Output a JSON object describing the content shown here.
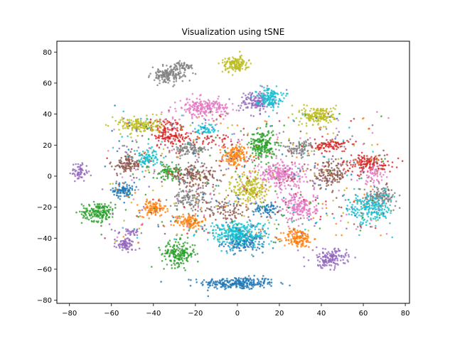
{
  "chart_data": {
    "type": "scatter",
    "title": "Visualization using tSNE",
    "xlabel": "",
    "ylabel": "",
    "xlim": [
      -86,
      82
    ],
    "ylim": [
      -82,
      87
    ],
    "xticks": [
      -80,
      -60,
      -40,
      -20,
      0,
      20,
      40,
      60,
      80
    ],
    "yticks": [
      -80,
      -60,
      -40,
      -20,
      0,
      20,
      40,
      60,
      80
    ],
    "xtick_labels": [
      "−80",
      "−60",
      "−40",
      "−20",
      "0",
      "20",
      "40",
      "60",
      "80"
    ],
    "ytick_labels": [
      "−80",
      "−60",
      "−40",
      "−20",
      "0",
      "20",
      "40",
      "60",
      "80"
    ],
    "grid": false,
    "legend": "none",
    "clusters": [
      {
        "color": "#1f77b4",
        "center": [
          0,
          -69
        ],
        "spread": [
          9,
          2
        ],
        "points": 260
      },
      {
        "color": "#1f77b4",
        "center": [
          -54,
          -9
        ],
        "spread": [
          2.5,
          2.5
        ],
        "points": 90
      },
      {
        "color": "#1f77b4",
        "center": [
          3,
          -43
        ],
        "spread": [
          5,
          3
        ],
        "points": 160
      },
      {
        "color": "#1f77b4",
        "center": [
          14,
          -21
        ],
        "spread": [
          3,
          2
        ],
        "points": 70
      },
      {
        "color": "#ff7f0e",
        "center": [
          -1,
          13
        ],
        "spread": [
          3,
          3.5
        ],
        "points": 150
      },
      {
        "color": "#ff7f0e",
        "center": [
          -40,
          -21
        ],
        "spread": [
          3,
          2.5
        ],
        "points": 100
      },
      {
        "color": "#ff7f0e",
        "center": [
          -23,
          -29
        ],
        "spread": [
          3.5,
          2.5
        ],
        "points": 110
      },
      {
        "color": "#ff7f0e",
        "center": [
          29,
          -40
        ],
        "spread": [
          3.5,
          3
        ],
        "points": 140
      },
      {
        "color": "#2ca02c",
        "center": [
          -66,
          -23
        ],
        "spread": [
          4,
          3
        ],
        "points": 180
      },
      {
        "color": "#2ca02c",
        "center": [
          -28,
          -50
        ],
        "spread": [
          4,
          4
        ],
        "points": 190
      },
      {
        "color": "#2ca02c",
        "center": [
          12,
          20
        ],
        "spread": [
          3,
          5
        ],
        "points": 200
      },
      {
        "color": "#2ca02c",
        "center": [
          -33,
          3
        ],
        "spread": [
          3,
          2.5
        ],
        "points": 80
      },
      {
        "color": "#d62728",
        "center": [
          -33,
          28
        ],
        "spread": [
          4,
          5
        ],
        "points": 150
      },
      {
        "color": "#d62728",
        "center": [
          45,
          20
        ],
        "spread": [
          4,
          2
        ],
        "points": 90
      },
      {
        "color": "#d62728",
        "center": [
          62,
          8
        ],
        "spread": [
          6,
          3
        ],
        "points": 150
      },
      {
        "color": "#d62728",
        "center": [
          -15,
          24
        ],
        "spread": [
          8,
          2
        ],
        "points": 60
      },
      {
        "color": "#9467bd",
        "center": [
          -75,
          3
        ],
        "spread": [
          2,
          3
        ],
        "points": 60
      },
      {
        "color": "#9467bd",
        "center": [
          9,
          48
        ],
        "spread": [
          4,
          3.5
        ],
        "points": 140
      },
      {
        "color": "#9467bd",
        "center": [
          -53,
          -44
        ],
        "spread": [
          2.5,
          2
        ],
        "points": 80
      },
      {
        "color": "#9467bd",
        "center": [
          44,
          -53
        ],
        "spread": [
          4,
          3
        ],
        "points": 150
      },
      {
        "color": "#9467bd",
        "center": [
          -50,
          -36
        ],
        "spread": [
          3,
          1
        ],
        "points": 30
      },
      {
        "color": "#8c564b",
        "center": [
          -52,
          8
        ],
        "spread": [
          4,
          3
        ],
        "points": 110
      },
      {
        "color": "#8c564b",
        "center": [
          -21,
          0
        ],
        "spread": [
          6,
          3.5
        ],
        "points": 170
      },
      {
        "color": "#8c564b",
        "center": [
          44,
          1
        ],
        "spread": [
          4,
          4
        ],
        "points": 140
      },
      {
        "color": "#8c564b",
        "center": [
          -5,
          -22
        ],
        "spread": [
          6,
          3
        ],
        "points": 80
      },
      {
        "color": "#e377c2",
        "center": [
          -16,
          44
        ],
        "spread": [
          6,
          3
        ],
        "points": 210
      },
      {
        "color": "#e377c2",
        "center": [
          21,
          1
        ],
        "spread": [
          6,
          4
        ],
        "points": 250
      },
      {
        "color": "#e377c2",
        "center": [
          30,
          -20
        ],
        "spread": [
          4,
          4.5
        ],
        "points": 180
      },
      {
        "color": "#e377c2",
        "center": [
          65,
          1
        ],
        "spread": [
          3,
          3
        ],
        "points": 50
      },
      {
        "color": "#7f7f7f",
        "center": [
          -33,
          65
        ],
        "spread": [
          4,
          2.5
        ],
        "points": 160
      },
      {
        "color": "#7f7f7f",
        "center": [
          -26,
          71
        ],
        "spread": [
          2.5,
          1.2
        ],
        "points": 50
      },
      {
        "color": "#7f7f7f",
        "center": [
          -22,
          17
        ],
        "spread": [
          4,
          2.5
        ],
        "points": 100
      },
      {
        "color": "#7f7f7f",
        "center": [
          29,
          18
        ],
        "spread": [
          4,
          2.5
        ],
        "points": 90
      },
      {
        "color": "#7f7f7f",
        "center": [
          68,
          -13
        ],
        "spread": [
          4,
          3
        ],
        "points": 140
      },
      {
        "color": "#7f7f7f",
        "center": [
          -22,
          -14
        ],
        "spread": [
          5,
          3
        ],
        "points": 110
      },
      {
        "color": "#bcbd22",
        "center": [
          -1,
          72
        ],
        "spread": [
          3,
          2.5
        ],
        "points": 150
      },
      {
        "color": "#bcbd22",
        "center": [
          -47,
          33
        ],
        "spread": [
          5,
          2.5
        ],
        "points": 170
      },
      {
        "color": "#bcbd22",
        "center": [
          39,
          39
        ],
        "spread": [
          4,
          3
        ],
        "points": 180
      },
      {
        "color": "#bcbd22",
        "center": [
          6,
          -8
        ],
        "spread": [
          4,
          5
        ],
        "points": 200
      },
      {
        "color": "#17becf",
        "center": [
          15,
          51
        ],
        "spread": [
          3,
          3
        ],
        "points": 140
      },
      {
        "color": "#17becf",
        "center": [
          -43,
          12
        ],
        "spread": [
          3,
          3
        ],
        "points": 90
      },
      {
        "color": "#17becf",
        "center": [
          0,
          -37
        ],
        "spread": [
          7,
          4
        ],
        "points": 320
      },
      {
        "color": "#17becf",
        "center": [
          63,
          -21
        ],
        "spread": [
          5,
          5
        ],
        "points": 200
      },
      {
        "color": "#17becf",
        "center": [
          -14,
          30
        ],
        "spread": [
          3,
          2
        ],
        "points": 50
      }
    ],
    "noise_points": 700
  }
}
